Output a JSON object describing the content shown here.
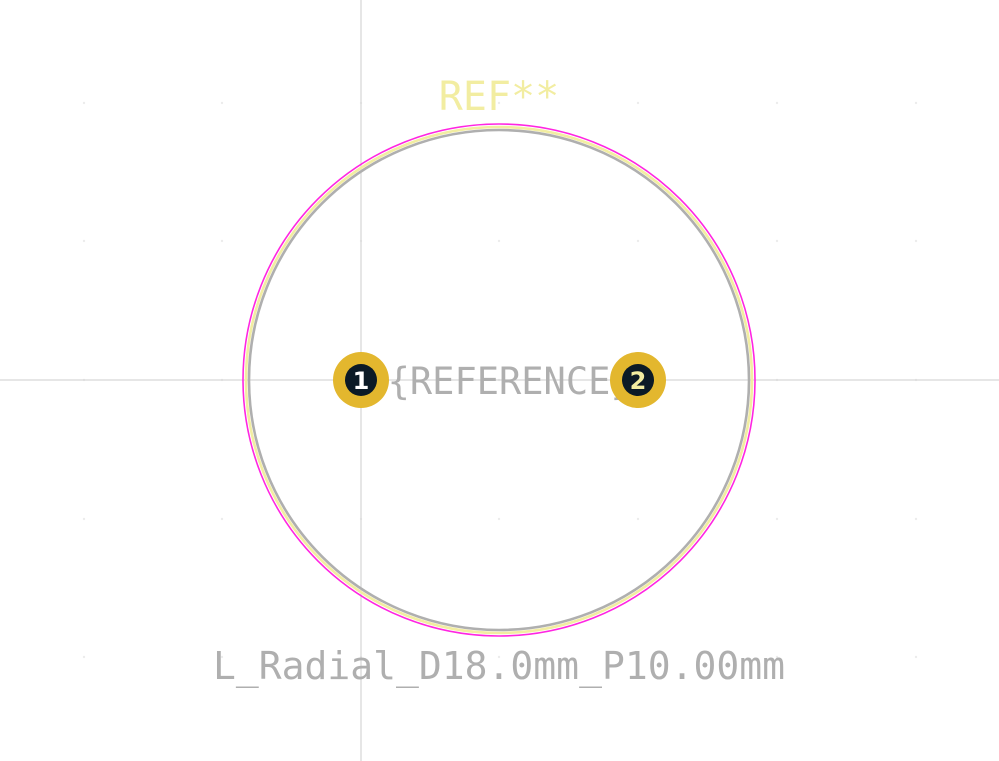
{
  "footprint": {
    "reference": "REF**",
    "value": "L_Radial_D18.0mm_P10.00mm",
    "fab_reference": "${REFERENCE}",
    "pads": [
      {
        "number": "1"
      },
      {
        "number": "2"
      }
    ]
  },
  "colors": {
    "background": "#ffffff",
    "crosshair": "#d6d6d6",
    "grid_dot": "#ececec",
    "courtyard": "#ff26e2",
    "silkscreen": "#f2eda1",
    "fabrication": "#afafaf",
    "pad_copper": "#e3b72e",
    "pad_hole": "#0b1a26",
    "pad_number_1": "#ffffff",
    "pad_number_2": "#f2eda1"
  }
}
